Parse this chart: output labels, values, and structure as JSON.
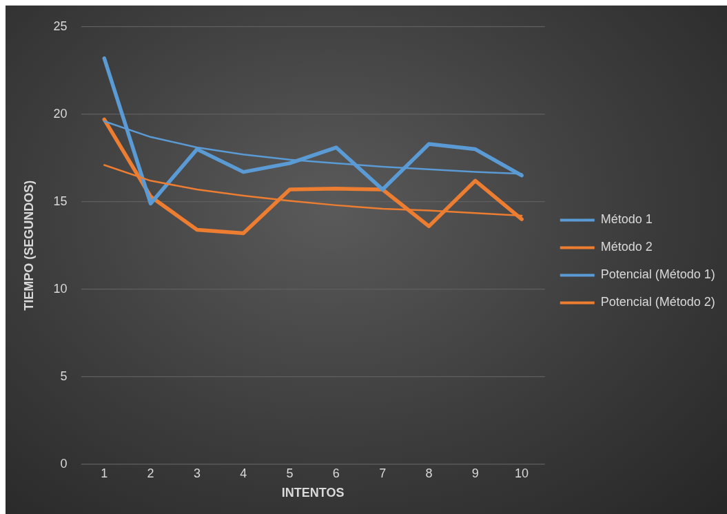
{
  "chart_data": {
    "type": "line",
    "xlabel": "INTENTOS",
    "ylabel": "TIEMPO (SEGUNDOS)",
    "x": [
      1,
      2,
      3,
      4,
      5,
      6,
      7,
      8,
      9,
      10
    ],
    "xlim": [
      0.5,
      10.5
    ],
    "xticks": [
      1,
      2,
      3,
      4,
      5,
      6,
      7,
      8,
      9,
      10
    ],
    "ylim": [
      0,
      25
    ],
    "yticks": [
      0,
      5,
      10,
      15,
      20,
      25
    ],
    "grid": "y",
    "legend": "right",
    "marker": "none",
    "line_style": "solid",
    "series": [
      {
        "name": "Método 1",
        "color": "#5b9bd5",
        "values": [
          23.2,
          14.9,
          18.0,
          16.7,
          17.2,
          18.1,
          15.7,
          18.3,
          18.0,
          16.5
        ]
      },
      {
        "name": "Método 2",
        "color": "#ed7d31",
        "values": [
          19.7,
          15.3,
          13.4,
          13.2,
          15.7,
          15.75,
          15.7,
          13.6,
          16.2,
          14.0
        ]
      },
      {
        "name": "Potencial (Método 1)",
        "color": "#5b9bd5",
        "type": "line",
        "x": [
          1,
          2,
          3,
          4,
          5,
          6,
          7,
          8,
          9,
          10
        ],
        "values": [
          19.6,
          18.7,
          18.1,
          17.7,
          17.4,
          17.2,
          17.0,
          16.85,
          16.7,
          16.6
        ]
      },
      {
        "name": "Potencial (Método 2)",
        "color": "#ed7d31",
        "type": "line",
        "x": [
          1,
          2,
          3,
          4,
          5,
          6,
          7,
          8,
          9,
          10
        ],
        "values": [
          17.1,
          16.2,
          15.7,
          15.35,
          15.05,
          14.8,
          14.6,
          14.5,
          14.35,
          14.2
        ]
      }
    ]
  }
}
